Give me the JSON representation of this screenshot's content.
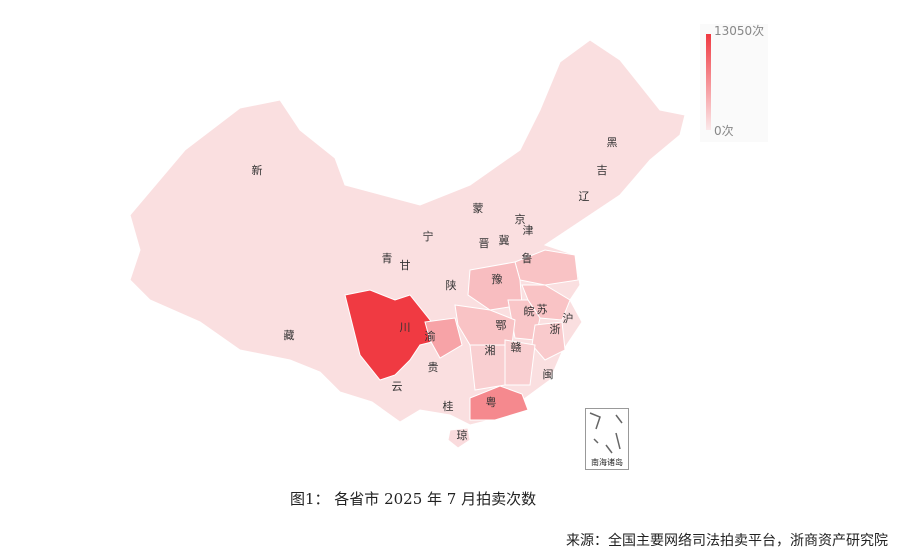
{
  "chart_data": {
    "type": "choropleth",
    "title": "",
    "legend": {
      "max_label": "13050次",
      "min_label": "0次",
      "color_high": "#f03a42",
      "color_low": "#fbe9ea",
      "placement": "top-right"
    },
    "regions": [
      {
        "label": "新",
        "intensity": 0.05
      },
      {
        "label": "藏",
        "intensity": 0.05
      },
      {
        "label": "青",
        "intensity": 0.04
      },
      {
        "label": "甘",
        "intensity": 0.05
      },
      {
        "label": "宁",
        "intensity": 0.04
      },
      {
        "label": "蒙",
        "intensity": 0.06
      },
      {
        "label": "黑",
        "intensity": 0.08
      },
      {
        "label": "吉",
        "intensity": 0.08
      },
      {
        "label": "辽",
        "intensity": 0.1
      },
      {
        "label": "京",
        "intensity": 0.1
      },
      {
        "label": "津",
        "intensity": 0.08
      },
      {
        "label": "冀",
        "intensity": 0.12
      },
      {
        "label": "晋",
        "intensity": 0.08
      },
      {
        "label": "陕",
        "intensity": 0.1
      },
      {
        "label": "鲁",
        "intensity": 0.22
      },
      {
        "label": "豫",
        "intensity": 0.25
      },
      {
        "label": "苏",
        "intensity": 0.22
      },
      {
        "label": "皖",
        "intensity": 0.2
      },
      {
        "label": "沪",
        "intensity": 0.1
      },
      {
        "label": "浙",
        "intensity": 0.18
      },
      {
        "label": "鄂",
        "intensity": 0.22
      },
      {
        "label": "川",
        "intensity": 1.0
      },
      {
        "label": "渝",
        "intensity": 0.4
      },
      {
        "label": "贵",
        "intensity": 0.12
      },
      {
        "label": "云",
        "intensity": 0.12
      },
      {
        "label": "湘",
        "intensity": 0.15
      },
      {
        "label": "赣",
        "intensity": 0.15
      },
      {
        "label": "闽",
        "intensity": 0.12
      },
      {
        "label": "桂",
        "intensity": 0.12
      },
      {
        "label": "粤",
        "intensity": 0.55
      },
      {
        "label": "琼",
        "intensity": 0.08
      }
    ],
    "inset_label": "南海诸岛"
  },
  "caption": "图1：   各省市 2025 年 7 月拍卖次数",
  "source": "来源：全国主要网络司法拍卖平台，浙商资产研究院"
}
